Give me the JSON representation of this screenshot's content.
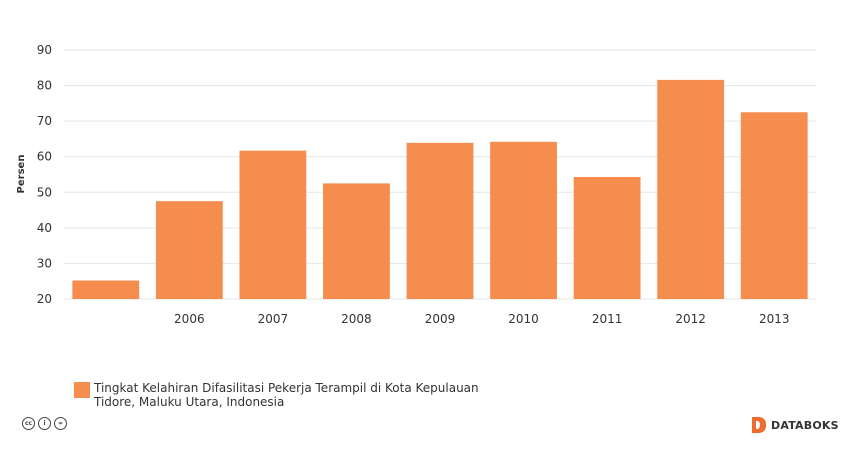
{
  "chart_data": {
    "type": "bar",
    "categories": [
      "",
      "2006",
      "2007",
      "2008",
      "2009",
      "2010",
      "2011",
      "2012",
      "2013"
    ],
    "series": [
      {
        "name": "Tingkat Kelahiran Difasilitasi Pekerja Terampil di Kota Kepulauan Tidore, Maluku Utara, Indonesia",
        "values": [
          25.2,
          47.5,
          61.7,
          52.5,
          63.9,
          64.2,
          54.3,
          81.6,
          72.5
        ]
      }
    ],
    "title": "",
    "xlabel": "",
    "ylabel": "Persen",
    "ylim": [
      20,
      90
    ],
    "yticks": [
      20,
      30,
      40,
      50,
      60,
      70,
      80,
      90
    ],
    "grid": true,
    "legend_position": "bottom-left",
    "bar_color": "#f58d4f"
  },
  "footer": {
    "license_icons": [
      {
        "name": "cc-icon",
        "glyph": "cc"
      },
      {
        "name": "attribution-icon",
        "glyph": "i"
      },
      {
        "name": "noderivs-icon",
        "glyph": "="
      }
    ],
    "brand": "DATABOKS"
  }
}
